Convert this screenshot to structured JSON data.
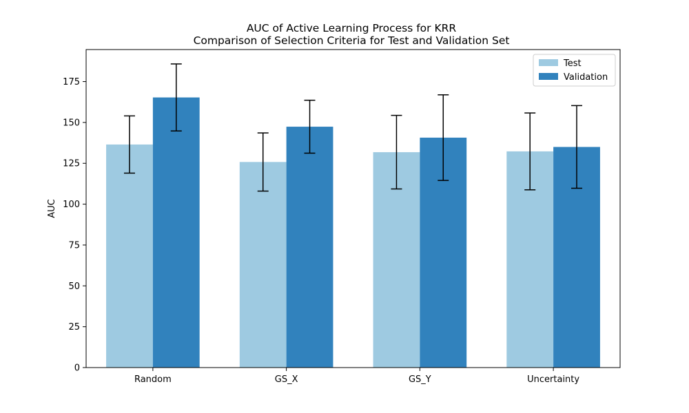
{
  "chart_data": {
    "type": "bar",
    "title": "AUC of Active Learning Process for KRR",
    "subtitle": "Comparison of Selection Criteria for Test and Validation Set",
    "xlabel": "",
    "ylabel": "AUC",
    "categories": [
      "Random",
      "GS_X",
      "GS_Y",
      "Uncertainty"
    ],
    "series": [
      {
        "name": "Test",
        "color": "#9ecae1",
        "values": [
          136.5,
          125.8,
          131.8,
          132.3
        ],
        "errors": [
          17.5,
          17.8,
          22.5,
          23.5
        ]
      },
      {
        "name": "Validation",
        "color": "#3182bd",
        "values": [
          165.3,
          147.4,
          140.7,
          135.0
        ],
        "errors": [
          20.5,
          16.2,
          26.2,
          25.3
        ]
      }
    ],
    "ylim": [
      0,
      194.6
    ],
    "yticks": [
      0,
      25,
      50,
      75,
      100,
      125,
      150,
      175
    ],
    "grid": false,
    "legend_position": "top-right"
  }
}
